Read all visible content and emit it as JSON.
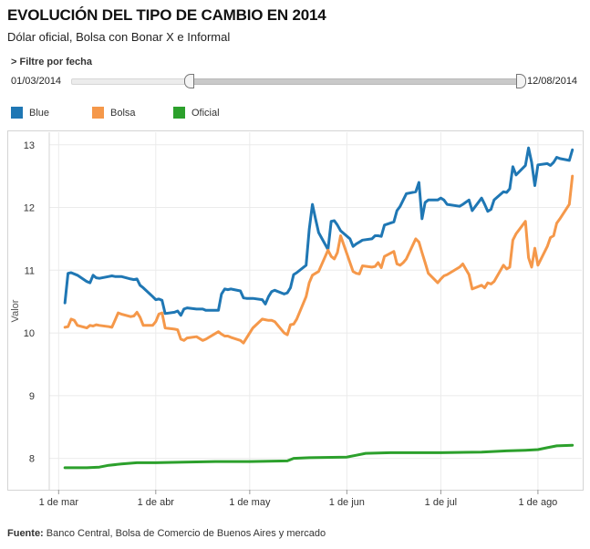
{
  "header": {
    "title": "EVOLUCIÓN DEL TIPO DE CAMBIO EN 2014",
    "subtitle": "Dólar oficial, Bolsa con Bonar X e Informal"
  },
  "filter": {
    "label": "> Filtre por fecha",
    "start_date": "01/03/2014",
    "end_date": "12/08/2014",
    "range_start_fraction": 0.262,
    "range_end_fraction": 1.0
  },
  "legend": {
    "items": [
      {
        "label": "Blue",
        "color": "#1f77b4"
      },
      {
        "label": "Bolsa",
        "color": "#f5984a"
      },
      {
        "label": "Oficial",
        "color": "#2ca02c"
      }
    ]
  },
  "footer": {
    "source_label": "Fuente:",
    "source_text": " Banco Central, Bolsa de Comercio de Buenos Aires y mercado"
  },
  "chart_data": {
    "type": "line",
    "title": "",
    "xlabel": "",
    "ylabel": "Valor",
    "ylim": [
      7.5,
      13.2
    ],
    "yticks": [
      8,
      9,
      10,
      11,
      12,
      13
    ],
    "xlim": [
      "2014-02-26",
      "2014-08-15"
    ],
    "xticks": [
      {
        "date": "2014-03-01",
        "label": "1 de mar"
      },
      {
        "date": "2014-04-01",
        "label": "1 de abr"
      },
      {
        "date": "2014-05-01",
        "label": "1 de may"
      },
      {
        "date": "2014-06-01",
        "label": "1 de jun"
      },
      {
        "date": "2014-07-01",
        "label": "1 de jul"
      },
      {
        "date": "2014-08-01",
        "label": "1 de ago"
      }
    ],
    "grid": true,
    "series": [
      {
        "name": "Blue",
        "color": "#1f77b4",
        "points": [
          [
            "2014-03-03",
            10.48
          ],
          [
            "2014-03-04",
            10.95
          ],
          [
            "2014-03-05",
            10.96
          ],
          [
            "2014-03-07",
            10.92
          ],
          [
            "2014-03-10",
            10.82
          ],
          [
            "2014-03-11",
            10.8
          ],
          [
            "2014-03-12",
            10.92
          ],
          [
            "2014-03-13",
            10.88
          ],
          [
            "2014-03-14",
            10.87
          ],
          [
            "2014-03-17",
            10.9
          ],
          [
            "2014-03-18",
            10.91
          ],
          [
            "2014-03-19",
            10.9
          ],
          [
            "2014-03-21",
            10.9
          ],
          [
            "2014-03-24",
            10.86
          ],
          [
            "2014-03-25",
            10.85
          ],
          [
            "2014-03-26",
            10.86
          ],
          [
            "2014-03-27",
            10.76
          ],
          [
            "2014-03-28",
            10.72
          ],
          [
            "2014-03-31",
            10.58
          ],
          [
            "2014-04-01",
            10.53
          ],
          [
            "2014-04-02",
            10.54
          ],
          [
            "2014-04-03",
            10.52
          ],
          [
            "2014-04-04",
            10.31
          ],
          [
            "2014-04-07",
            10.33
          ],
          [
            "2014-04-08",
            10.35
          ],
          [
            "2014-04-09",
            10.28
          ],
          [
            "2014-04-10",
            10.38
          ],
          [
            "2014-04-11",
            10.4
          ],
          [
            "2014-04-14",
            10.38
          ],
          [
            "2014-04-16",
            10.38
          ],
          [
            "2014-04-17",
            10.36
          ],
          [
            "2014-04-21",
            10.36
          ],
          [
            "2014-04-22",
            10.62
          ],
          [
            "2014-04-23",
            10.7
          ],
          [
            "2014-04-24",
            10.69
          ],
          [
            "2014-04-25",
            10.7
          ],
          [
            "2014-04-28",
            10.67
          ],
          [
            "2014-04-29",
            10.56
          ],
          [
            "2014-04-30",
            10.55
          ],
          [
            "2014-05-02",
            10.55
          ],
          [
            "2014-05-05",
            10.53
          ],
          [
            "2014-05-06",
            10.46
          ],
          [
            "2014-05-07",
            10.58
          ],
          [
            "2014-05-08",
            10.66
          ],
          [
            "2014-05-09",
            10.68
          ],
          [
            "2014-05-12",
            10.62
          ],
          [
            "2014-05-13",
            10.64
          ],
          [
            "2014-05-14",
            10.72
          ],
          [
            "2014-05-15",
            10.93
          ],
          [
            "2014-05-16",
            10.96
          ],
          [
            "2014-05-19",
            11.08
          ],
          [
            "2014-05-20",
            11.65
          ],
          [
            "2014-05-21",
            12.05
          ],
          [
            "2014-05-22",
            11.82
          ],
          [
            "2014-05-23",
            11.6
          ],
          [
            "2014-05-26",
            11.33
          ],
          [
            "2014-05-27",
            11.78
          ],
          [
            "2014-05-28",
            11.79
          ],
          [
            "2014-05-29",
            11.72
          ],
          [
            "2014-05-30",
            11.63
          ],
          [
            "2014-06-02",
            11.5
          ],
          [
            "2014-06-03",
            11.38
          ],
          [
            "2014-06-04",
            11.42
          ],
          [
            "2014-06-05",
            11.45
          ],
          [
            "2014-06-06",
            11.48
          ],
          [
            "2014-06-09",
            11.5
          ],
          [
            "2014-06-10",
            11.55
          ],
          [
            "2014-06-11",
            11.55
          ],
          [
            "2014-06-12",
            11.54
          ],
          [
            "2014-06-13",
            11.72
          ],
          [
            "2014-06-16",
            11.77
          ],
          [
            "2014-06-17",
            11.95
          ],
          [
            "2014-06-18",
            12.02
          ],
          [
            "2014-06-19",
            12.12
          ],
          [
            "2014-06-20",
            12.22
          ],
          [
            "2014-06-23",
            12.25
          ],
          [
            "2014-06-24",
            12.4
          ],
          [
            "2014-06-25",
            11.82
          ],
          [
            "2014-06-26",
            12.08
          ],
          [
            "2014-06-27",
            12.12
          ],
          [
            "2014-06-30",
            12.12
          ],
          [
            "2014-07-01",
            12.15
          ],
          [
            "2014-07-02",
            12.12
          ],
          [
            "2014-07-03",
            12.05
          ],
          [
            "2014-07-07",
            12.02
          ],
          [
            "2014-07-08",
            12.05
          ],
          [
            "2014-07-10",
            12.12
          ],
          [
            "2014-07-11",
            11.95
          ],
          [
            "2014-07-14",
            12.15
          ],
          [
            "2014-07-15",
            12.05
          ],
          [
            "2014-07-16",
            11.94
          ],
          [
            "2014-07-17",
            11.97
          ],
          [
            "2014-07-18",
            12.12
          ],
          [
            "2014-07-21",
            12.25
          ],
          [
            "2014-07-22",
            12.24
          ],
          [
            "2014-07-23",
            12.3
          ],
          [
            "2014-07-24",
            12.65
          ],
          [
            "2014-07-25",
            12.52
          ],
          [
            "2014-07-28",
            12.67
          ],
          [
            "2014-07-29",
            12.95
          ],
          [
            "2014-07-30",
            12.72
          ],
          [
            "2014-07-31",
            12.35
          ],
          [
            "2014-08-01",
            12.68
          ],
          [
            "2014-08-04",
            12.7
          ],
          [
            "2014-08-05",
            12.67
          ],
          [
            "2014-08-06",
            12.72
          ],
          [
            "2014-08-07",
            12.8
          ],
          [
            "2014-08-08",
            12.78
          ],
          [
            "2014-08-11",
            12.75
          ],
          [
            "2014-08-12",
            12.92
          ]
        ]
      },
      {
        "name": "Bolsa",
        "color": "#f5984a",
        "points": [
          [
            "2014-03-03",
            10.09
          ],
          [
            "2014-03-04",
            10.1
          ],
          [
            "2014-03-05",
            10.22
          ],
          [
            "2014-03-06",
            10.2
          ],
          [
            "2014-03-07",
            10.12
          ],
          [
            "2014-03-10",
            10.08
          ],
          [
            "2014-03-11",
            10.12
          ],
          [
            "2014-03-12",
            10.11
          ],
          [
            "2014-03-13",
            10.13
          ],
          [
            "2014-03-14",
            10.12
          ],
          [
            "2014-03-17",
            10.1
          ],
          [
            "2014-03-18",
            10.09
          ],
          [
            "2014-03-19",
            10.2
          ],
          [
            "2014-03-20",
            10.32
          ],
          [
            "2014-03-21",
            10.3
          ],
          [
            "2014-03-24",
            10.26
          ],
          [
            "2014-03-25",
            10.27
          ],
          [
            "2014-03-26",
            10.33
          ],
          [
            "2014-03-27",
            10.25
          ],
          [
            "2014-03-28",
            10.12
          ],
          [
            "2014-03-31",
            10.12
          ],
          [
            "2014-04-01",
            10.18
          ],
          [
            "2014-04-02",
            10.3
          ],
          [
            "2014-04-03",
            10.32
          ],
          [
            "2014-04-04",
            10.08
          ],
          [
            "2014-04-07",
            10.06
          ],
          [
            "2014-04-08",
            10.05
          ],
          [
            "2014-04-09",
            9.9
          ],
          [
            "2014-04-10",
            9.88
          ],
          [
            "2014-04-11",
            9.92
          ],
          [
            "2014-04-14",
            9.94
          ],
          [
            "2014-04-16",
            9.88
          ],
          [
            "2014-04-17",
            9.9
          ],
          [
            "2014-04-21",
            10.02
          ],
          [
            "2014-04-22",
            9.98
          ],
          [
            "2014-04-23",
            9.95
          ],
          [
            "2014-04-24",
            9.95
          ],
          [
            "2014-04-25",
            9.93
          ],
          [
            "2014-04-28",
            9.88
          ],
          [
            "2014-04-29",
            9.84
          ],
          [
            "2014-04-30",
            9.92
          ],
          [
            "2014-05-02",
            10.08
          ],
          [
            "2014-05-05",
            10.22
          ],
          [
            "2014-05-06",
            10.21
          ],
          [
            "2014-05-07",
            10.2
          ],
          [
            "2014-05-08",
            10.2
          ],
          [
            "2014-05-09",
            10.18
          ],
          [
            "2014-05-12",
            10.0
          ],
          [
            "2014-05-13",
            9.97
          ],
          [
            "2014-05-14",
            10.13
          ],
          [
            "2014-05-15",
            10.14
          ],
          [
            "2014-05-16",
            10.22
          ],
          [
            "2014-05-19",
            10.58
          ],
          [
            "2014-05-20",
            10.8
          ],
          [
            "2014-05-21",
            10.92
          ],
          [
            "2014-05-22",
            10.95
          ],
          [
            "2014-05-23",
            10.98
          ],
          [
            "2014-05-26",
            11.32
          ],
          [
            "2014-05-27",
            11.22
          ],
          [
            "2014-05-28",
            11.18
          ],
          [
            "2014-05-29",
            11.28
          ],
          [
            "2014-05-30",
            11.55
          ],
          [
            "2014-06-02",
            11.12
          ],
          [
            "2014-06-03",
            10.98
          ],
          [
            "2014-06-04",
            10.95
          ],
          [
            "2014-06-05",
            10.94
          ],
          [
            "2014-06-06",
            11.07
          ],
          [
            "2014-06-09",
            11.05
          ],
          [
            "2014-06-10",
            11.06
          ],
          [
            "2014-06-11",
            11.12
          ],
          [
            "2014-06-12",
            11.04
          ],
          [
            "2014-06-13",
            11.22
          ],
          [
            "2014-06-16",
            11.3
          ],
          [
            "2014-06-17",
            11.1
          ],
          [
            "2014-06-18",
            11.08
          ],
          [
            "2014-06-19",
            11.12
          ],
          [
            "2014-06-20",
            11.18
          ],
          [
            "2014-06-23",
            11.5
          ],
          [
            "2014-06-24",
            11.45
          ],
          [
            "2014-06-25",
            11.28
          ],
          [
            "2014-06-26",
            11.12
          ],
          [
            "2014-06-27",
            10.95
          ],
          [
            "2014-06-30",
            10.8
          ],
          [
            "2014-07-01",
            10.86
          ],
          [
            "2014-07-02",
            10.91
          ],
          [
            "2014-07-03",
            10.93
          ],
          [
            "2014-07-07",
            11.05
          ],
          [
            "2014-07-08",
            11.1
          ],
          [
            "2014-07-10",
            10.93
          ],
          [
            "2014-07-11",
            10.7
          ],
          [
            "2014-07-14",
            10.76
          ],
          [
            "2014-07-15",
            10.72
          ],
          [
            "2014-07-16",
            10.8
          ],
          [
            "2014-07-17",
            10.78
          ],
          [
            "2014-07-18",
            10.82
          ],
          [
            "2014-07-21",
            11.08
          ],
          [
            "2014-07-22",
            11.02
          ],
          [
            "2014-07-23",
            11.05
          ],
          [
            "2014-07-24",
            11.48
          ],
          [
            "2014-07-25",
            11.58
          ],
          [
            "2014-07-28",
            11.78
          ],
          [
            "2014-07-29",
            11.2
          ],
          [
            "2014-07-30",
            11.05
          ],
          [
            "2014-07-31",
            11.35
          ],
          [
            "2014-08-01",
            11.08
          ],
          [
            "2014-08-04",
            11.38
          ],
          [
            "2014-08-05",
            11.52
          ],
          [
            "2014-08-06",
            11.55
          ],
          [
            "2014-08-07",
            11.75
          ],
          [
            "2014-08-08",
            11.82
          ],
          [
            "2014-08-11",
            12.05
          ],
          [
            "2014-08-12",
            12.5
          ]
        ]
      },
      {
        "name": "Oficial",
        "color": "#2ca02c",
        "points": [
          [
            "2014-03-03",
            7.85
          ],
          [
            "2014-03-10",
            7.85
          ],
          [
            "2014-03-14",
            7.86
          ],
          [
            "2014-03-17",
            7.89
          ],
          [
            "2014-03-21",
            7.91
          ],
          [
            "2014-03-26",
            7.93
          ],
          [
            "2014-04-01",
            7.93
          ],
          [
            "2014-04-10",
            7.94
          ],
          [
            "2014-04-20",
            7.95
          ],
          [
            "2014-05-01",
            7.95
          ],
          [
            "2014-05-13",
            7.96
          ],
          [
            "2014-05-15",
            8.0
          ],
          [
            "2014-05-20",
            8.01
          ],
          [
            "2014-06-01",
            8.02
          ],
          [
            "2014-06-04",
            8.05
          ],
          [
            "2014-06-07",
            8.08
          ],
          [
            "2014-06-15",
            8.09
          ],
          [
            "2014-07-01",
            8.09
          ],
          [
            "2014-07-14",
            8.1
          ],
          [
            "2014-07-22",
            8.12
          ],
          [
            "2014-07-28",
            8.13
          ],
          [
            "2014-08-01",
            8.14
          ],
          [
            "2014-08-04",
            8.17
          ],
          [
            "2014-08-07",
            8.2
          ],
          [
            "2014-08-12",
            8.21
          ]
        ]
      }
    ]
  }
}
